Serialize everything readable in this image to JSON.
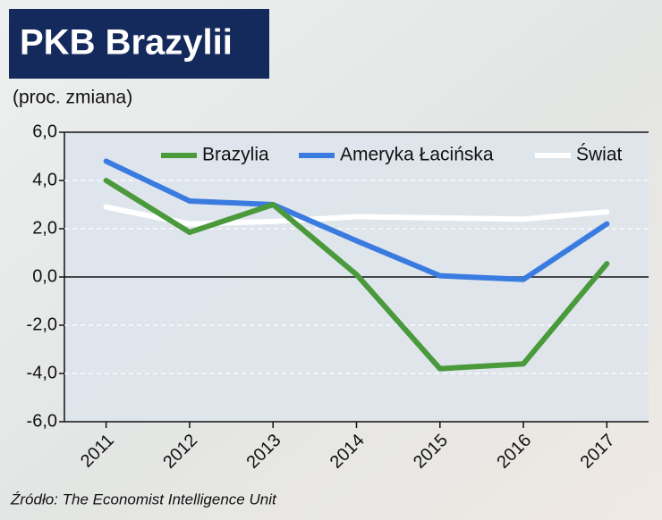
{
  "chart_data": {
    "type": "line",
    "title": "PKB Brazylii",
    "subtitle": "(proc. zmiana)",
    "source": "Źródło: The Economist Intelligence Unit",
    "categories": [
      "2011",
      "2012",
      "2013",
      "2014",
      "2015",
      "2016",
      "2017"
    ],
    "series": [
      {
        "name": "Brazylia",
        "color": "#4a9a3c",
        "values": [
          4.0,
          1.85,
          3.0,
          0.1,
          -3.8,
          -3.6,
          0.55
        ]
      },
      {
        "name": "Ameryka Łacińska",
        "color": "#3a7be0",
        "values": [
          4.8,
          3.15,
          3.0,
          1.5,
          0.05,
          -0.1,
          2.2
        ]
      },
      {
        "name": "Świat",
        "color": "#ffffff",
        "values": [
          2.9,
          2.2,
          2.3,
          2.5,
          2.45,
          2.4,
          2.7
        ]
      }
    ],
    "ylim": [
      -6,
      6
    ],
    "yticks": [
      {
        "value": -6,
        "label": "-6,0"
      },
      {
        "value": -4,
        "label": "-4,0"
      },
      {
        "value": -2,
        "label": "-2,0"
      },
      {
        "value": 0,
        "label": "0,0"
      },
      {
        "value": 2,
        "label": "2,0"
      },
      {
        "value": 4,
        "label": "4,0"
      },
      {
        "value": 6,
        "label": "6,0"
      }
    ],
    "grid": true,
    "legend": "top"
  }
}
